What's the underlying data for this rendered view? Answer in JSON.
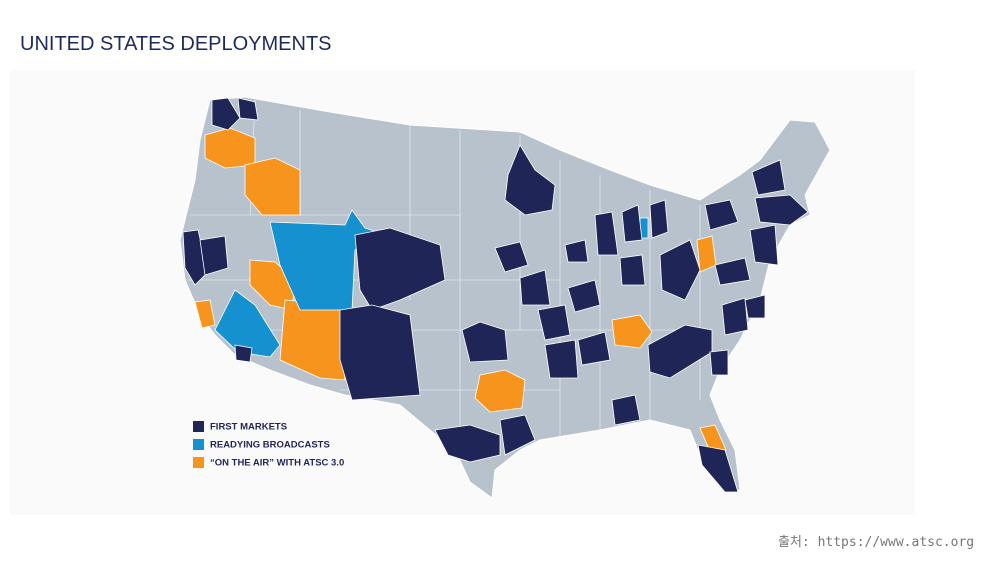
{
  "header": {
    "title": "UNITED STATES DEPLOYMENTS"
  },
  "legend": [
    {
      "label": "FIRST MARKETS",
      "color": "#1f2556"
    },
    {
      "label": "READYING BROADCASTS",
      "color": "#1591d0"
    },
    {
      "label": "“ON THE AIR” WITH ATSC 3.0",
      "color": "#f7941d"
    }
  ],
  "source": "출처: https://www.atsc.org"
}
